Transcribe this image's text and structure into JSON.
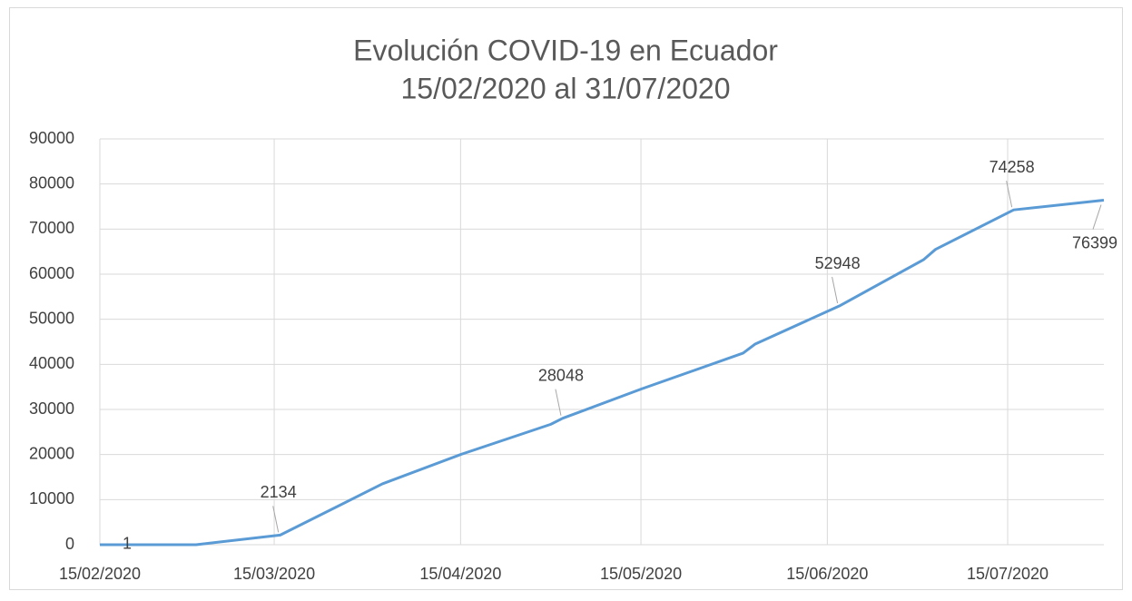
{
  "chart_data": {
    "type": "line",
    "title": "Evolución COVID-19 en Ecuador",
    "subtitle": "15/02/2020 al 31/07/2020",
    "x": [
      "15/02/2020",
      "02/03/2020",
      "16/03/2020",
      "02/04/2020",
      "15/04/2020",
      "30/04/2020",
      "02/05/2020",
      "15/05/2020",
      "01/06/2020",
      "03/06/2020",
      "17/06/2020",
      "01/07/2020",
      "03/07/2020",
      "16/07/2020",
      "31/07/2020"
    ],
    "series": [
      {
        "color": "#5b9bd5",
        "values": [
          1,
          7,
          2134,
          13500,
          20000,
          26700,
          28048,
          34500,
          42500,
          44500,
          52948,
          63200,
          65500,
          74258,
          76399
        ],
        "value_labels": [
          "1",
          null,
          "2134",
          null,
          null,
          null,
          "28048",
          null,
          null,
          null,
          "52948",
          null,
          null,
          "74258",
          "76399"
        ]
      }
    ],
    "xlim": [
      "15/02/2020",
      "31/07/2020"
    ],
    "xticks": [
      "15/02/2020",
      "15/03/2020",
      "15/04/2020",
      "15/05/2020",
      "15/06/2020",
      "15/07/2020"
    ],
    "ylim": [
      0,
      90000
    ],
    "yticks": [
      0,
      10000,
      20000,
      30000,
      40000,
      50000,
      60000,
      70000,
      80000,
      90000
    ],
    "grid": true
  }
}
